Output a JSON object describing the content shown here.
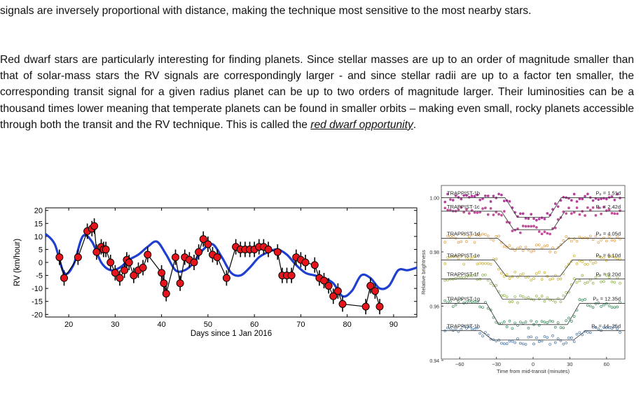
{
  "text": {
    "p1": "signals are inversely proportional with distance, making the technique most sensitive to the most nearby stars.",
    "p2_main": "Red dwarf stars are particularly interesting for finding planets. Since stellar masses are up to an order of magnitude smaller than that of solar-mass stars the RV signals are correspondingly larger - and since stellar radii are up to a factor ten smaller, the corresponding transit signal for a given radius planet can be up to two orders of magnitude larger. Their luminosities can be a thousand times lower meaning that temperate planets can be found in smaller orbits – making even small, rocky planets accessible through both the transit and the RV technique. This is called the ",
    "p2_link": "red dwarf opportunity",
    "p2_end": "."
  },
  "chart_data": [
    {
      "type": "scatter",
      "title": "",
      "xlabel": "Days since 1 Jan 2016",
      "ylabel": "RV (km/hour)",
      "xlim": [
        15,
        95
      ],
      "ylim": [
        -21,
        21
      ],
      "xticks": [
        20,
        30,
        40,
        50,
        60,
        70,
        80,
        90
      ],
      "yticks": [
        20,
        15,
        10,
        5,
        0,
        -5,
        -10,
        -15,
        -20
      ],
      "grid": false,
      "colors": {
        "points": "#e8141c",
        "model": "#1f3fd1",
        "connect": "#000000"
      },
      "series": [
        {
          "style": "points-with-errorbars",
          "x": [
            18,
            19,
            22,
            24,
            25,
            25.5,
            26,
            27,
            27.5,
            28,
            29,
            30,
            31,
            32,
            32.5,
            33,
            34,
            35,
            36,
            37,
            40,
            40.5,
            41,
            43,
            44,
            45,
            46,
            47,
            48,
            49,
            50,
            51,
            52,
            54,
            56,
            57,
            58,
            59,
            60,
            61,
            62,
            63,
            65,
            66,
            67,
            68,
            69,
            70,
            71,
            73,
            74,
            75,
            76,
            77,
            78,
            79,
            84,
            85,
            86,
            87
          ],
          "y": [
            2,
            -6,
            2,
            12,
            13,
            14,
            4,
            6,
            5,
            5,
            0,
            -4,
            -6,
            -3,
            1,
            0,
            -5,
            -3,
            -2,
            3,
            -4,
            -8,
            -12,
            2,
            -8,
            2,
            1,
            0,
            4,
            9,
            7,
            3,
            2,
            -6,
            6,
            5,
            5,
            5,
            5,
            6,
            6,
            5,
            4,
            -5,
            -5,
            -5,
            2,
            1,
            0,
            -1,
            -6,
            -7,
            -9,
            -13,
            -11,
            -16,
            -17,
            -9,
            -11,
            -17
          ]
        },
        {
          "style": "model-curve",
          "x": [
            15,
            17,
            19,
            21,
            23,
            25,
            27,
            29,
            31,
            33,
            35,
            37,
            39,
            41,
            43,
            45,
            47,
            49,
            51,
            53,
            55,
            57,
            59,
            61,
            63,
            65,
            67,
            69,
            71,
            73,
            75,
            77,
            79,
            81,
            83,
            85,
            87,
            89,
            91,
            93,
            95
          ],
          "y": [
            11,
            7,
            -4,
            -1,
            10,
            8,
            0,
            -3,
            -2,
            1,
            3,
            6,
            8,
            3,
            -3,
            -3,
            0,
            5,
            7,
            2,
            -4,
            -5,
            -2,
            2,
            4,
            5,
            3,
            -1,
            -4,
            -5,
            -6,
            -8,
            -13,
            -11,
            -5,
            -6,
            -10,
            -9,
            -3,
            -3,
            -2
          ]
        }
      ]
    },
    {
      "type": "scatter",
      "title": "",
      "xlabel": "Time from mid-transit (minutes)",
      "ylabel": "Relative brightness",
      "xlim": [
        -75,
        75
      ],
      "xticks": [
        -60,
        -30,
        0,
        30,
        60
      ],
      "yticks": [
        1.0,
        0.98,
        0.96,
        0.94
      ],
      "grid": false,
      "series": [
        {
          "name": "TRAPPIST-1b",
          "period_label": "Pₚ = 1.51d",
          "offset": 1.0,
          "depth": 0.0072,
          "half_duration": 18,
          "color": "#b5409c"
        },
        {
          "name": "TRAPPIST-1c",
          "period_label": "Pₚ = 2.42d",
          "offset": 0.995,
          "depth": 0.0068,
          "half_duration": 21,
          "color": "#c0509a"
        },
        {
          "name": "TRAPPIST-1d",
          "period_label": "Pₚ = 4.05d",
          "offset": 0.985,
          "depth": 0.004,
          "half_duration": 24,
          "color": "#e0a048"
        },
        {
          "name": "TRAPPIST-1e",
          "period_label": "Pₚ = 6.10d",
          "offset": 0.977,
          "depth": 0.006,
          "half_duration": 27,
          "color": "#c8b22e"
        },
        {
          "name": "TRAPPIST-1f",
          "period_label": "Pₚ = 9.20d",
          "offset": 0.97,
          "depth": 0.0075,
          "half_duration": 30,
          "color": "#8fb24a"
        },
        {
          "name": "TRAPPIST-1g",
          "period_label": "Pₚ = 12.35d",
          "offset": 0.961,
          "depth": 0.0078,
          "half_duration": 33,
          "color": "#3a8a5c"
        },
        {
          "name": "TRAPPIST-1h",
          "period_label": "Pₚ = 14–25d",
          "offset": 0.951,
          "depth": 0.0035,
          "half_duration": 38,
          "color": "#4a78a8"
        }
      ]
    }
  ]
}
